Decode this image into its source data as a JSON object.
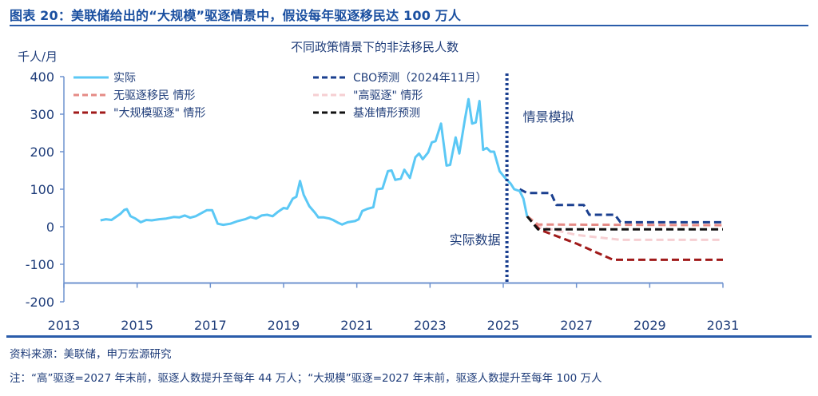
{
  "figure": {
    "title": "图表 20：美联储给出的“大规模”驱逐情景中，假设每年驱逐移民达 100 万人",
    "source": "资料来源：美联储，申万宏源研究",
    "note": "注：“高”驱逐=2027 年末前，驱逐人数提升至每年 44 万人；“大规模”驱逐=2027 年末前，驱逐人数提升至每年 100 万人"
  },
  "chart_data": {
    "type": "line",
    "title": "不同政策情景下的非法移民人数",
    "ylabel": "千人/月",
    "xlabel": "",
    "xlim": [
      2013,
      2031
    ],
    "ylim": [
      -200,
      400
    ],
    "x_ticks": [
      "2013",
      "2015",
      "2017",
      "2019",
      "2021",
      "2023",
      "2025",
      "2027",
      "2029",
      "2031"
    ],
    "y_ticks": [
      "400",
      "300",
      "200",
      "100",
      "0",
      "-100",
      "-200"
    ],
    "x_axis_crosses_at": -150,
    "grid": false,
    "legend_position": "top",
    "annotations": {
      "divider_x": 2025.1,
      "left_label": "实际数据",
      "right_label": "情景模拟"
    },
    "series": [
      {
        "name": "实际",
        "style": "solid",
        "color": "#5bc8f5",
        "points": [
          [
            2014.0,
            17
          ],
          [
            2014.15,
            20
          ],
          [
            2014.3,
            18
          ],
          [
            2014.45,
            28
          ],
          [
            2014.55,
            35
          ],
          [
            2014.65,
            45
          ],
          [
            2014.72,
            47
          ],
          [
            2014.82,
            28
          ],
          [
            2014.95,
            22
          ],
          [
            2015.1,
            12
          ],
          [
            2015.25,
            18
          ],
          [
            2015.4,
            17
          ],
          [
            2015.6,
            20
          ],
          [
            2015.8,
            22
          ],
          [
            2016.0,
            26
          ],
          [
            2016.15,
            25
          ],
          [
            2016.3,
            30
          ],
          [
            2016.45,
            24
          ],
          [
            2016.6,
            28
          ],
          [
            2016.75,
            36
          ],
          [
            2016.9,
            44
          ],
          [
            2017.05,
            44
          ],
          [
            2017.2,
            8
          ],
          [
            2017.35,
            5
          ],
          [
            2017.55,
            8
          ],
          [
            2017.75,
            15
          ],
          [
            2017.95,
            20
          ],
          [
            2018.1,
            26
          ],
          [
            2018.25,
            22
          ],
          [
            2018.4,
            30
          ],
          [
            2018.55,
            32
          ],
          [
            2018.7,
            28
          ],
          [
            2018.85,
            40
          ],
          [
            2019.0,
            50
          ],
          [
            2019.1,
            48
          ],
          [
            2019.25,
            75
          ],
          [
            2019.35,
            80
          ],
          [
            2019.45,
            122
          ],
          [
            2019.55,
            85
          ],
          [
            2019.7,
            55
          ],
          [
            2019.85,
            38
          ],
          [
            2019.95,
            25
          ],
          [
            2020.1,
            25
          ],
          [
            2020.25,
            22
          ],
          [
            2020.35,
            18
          ],
          [
            2020.5,
            10
          ],
          [
            2020.6,
            6
          ],
          [
            2020.75,
            12
          ],
          [
            2020.95,
            15
          ],
          [
            2021.05,
            20
          ],
          [
            2021.15,
            42
          ],
          [
            2021.3,
            48
          ],
          [
            2021.45,
            52
          ],
          [
            2021.55,
            100
          ],
          [
            2021.7,
            102
          ],
          [
            2021.85,
            148
          ],
          [
            2021.95,
            150
          ],
          [
            2022.05,
            125
          ],
          [
            2022.2,
            128
          ],
          [
            2022.3,
            152
          ],
          [
            2022.45,
            130
          ],
          [
            2022.6,
            185
          ],
          [
            2022.7,
            195
          ],
          [
            2022.8,
            180
          ],
          [
            2022.95,
            198
          ],
          [
            2023.05,
            225
          ],
          [
            2023.15,
            228
          ],
          [
            2023.3,
            275
          ],
          [
            2023.45,
            163
          ],
          [
            2023.55,
            165
          ],
          [
            2023.7,
            238
          ],
          [
            2023.8,
            195
          ],
          [
            2023.95,
            285
          ],
          [
            2024.05,
            340
          ],
          [
            2024.15,
            275
          ],
          [
            2024.25,
            278
          ],
          [
            2024.35,
            335
          ],
          [
            2024.45,
            205
          ],
          [
            2024.55,
            210
          ],
          [
            2024.65,
            200
          ],
          [
            2024.75,
            200
          ],
          [
            2024.9,
            148
          ],
          [
            2025.05,
            130
          ],
          [
            2025.2,
            115
          ],
          [
            2025.3,
            100
          ],
          [
            2025.45,
            95
          ],
          [
            2025.55,
            75
          ],
          [
            2025.65,
            28
          ]
        ]
      },
      {
        "name": "CBO预测（2024年11月）",
        "style": "dashed",
        "color": "#1a3f8f",
        "points": [
          [
            2025.45,
            100
          ],
          [
            2025.65,
            90
          ],
          [
            2026.3,
            90
          ],
          [
            2026.45,
            58
          ],
          [
            2027.2,
            58
          ],
          [
            2027.35,
            32
          ],
          [
            2028.05,
            32
          ],
          [
            2028.2,
            12
          ],
          [
            2031.0,
            12
          ]
        ]
      },
      {
        "name": "无驱逐移民 情形",
        "style": "dashed",
        "color": "#e58b86",
        "points": [
          [
            2025.65,
            28
          ],
          [
            2025.95,
            6
          ],
          [
            2031.0,
            4
          ]
        ]
      },
      {
        "name": "\"高驱逐\" 情形",
        "style": "dashed",
        "color": "#f6cfd2",
        "points": [
          [
            2025.65,
            28
          ],
          [
            2026.0,
            0
          ],
          [
            2027.0,
            -22
          ],
          [
            2028.2,
            -35
          ],
          [
            2031.0,
            -35
          ]
        ]
      },
      {
        "name": "\"大规模驱逐\" 情形",
        "style": "dashed",
        "color": "#a01a1a",
        "points": [
          [
            2025.65,
            28
          ],
          [
            2026.0,
            -8
          ],
          [
            2027.0,
            -45
          ],
          [
            2028.0,
            -88
          ],
          [
            2031.0,
            -88
          ]
        ]
      },
      {
        "name": "基准情形预测",
        "style": "dashed",
        "color": "#111111",
        "points": [
          [
            2025.65,
            28
          ],
          [
            2025.95,
            -7
          ],
          [
            2031.0,
            -7
          ]
        ]
      }
    ],
    "legend": [
      {
        "label": "实际",
        "color": "#5bc8f5",
        "style": "solid",
        "column": "left"
      },
      {
        "label": "无驱逐移民 情形",
        "color": "#e58b86",
        "style": "dashed",
        "column": "left"
      },
      {
        "label": "\"大规模驱逐\" 情形",
        "color": "#a01a1a",
        "style": "dashed",
        "column": "left"
      },
      {
        "label": "CBO预测（2024年11月）",
        "color": "#1a3f8f",
        "style": "dashed",
        "column": "right"
      },
      {
        "label": "\"高驱逐\" 情形",
        "color": "#f6cfd2",
        "style": "dashed",
        "column": "right"
      },
      {
        "label": "基准情形预测",
        "color": "#111111",
        "style": "dashed",
        "column": "right"
      }
    ]
  }
}
